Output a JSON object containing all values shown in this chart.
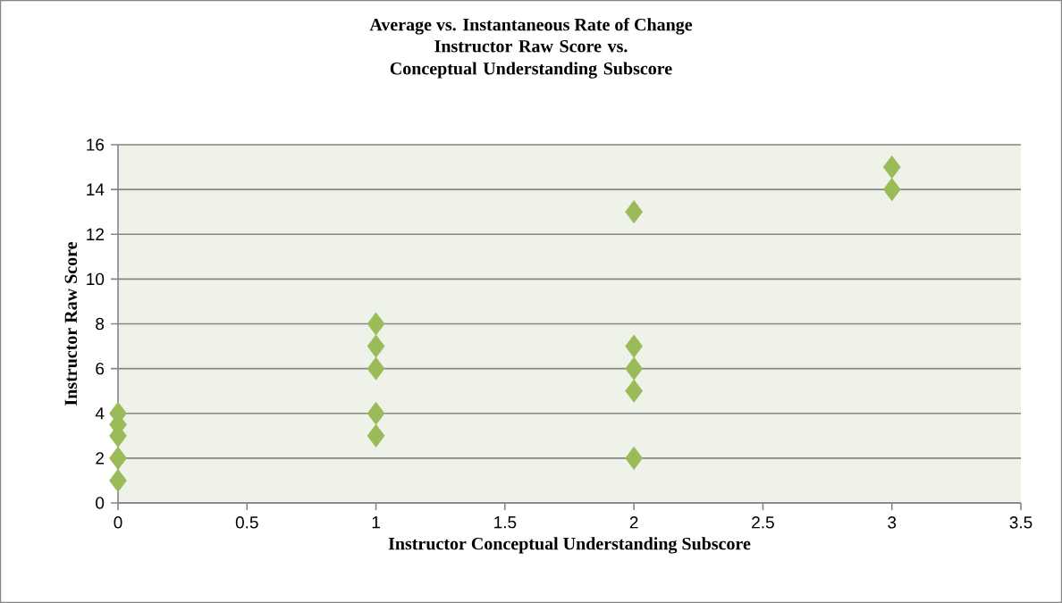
{
  "chart_data": {
    "type": "scatter",
    "title": "Average vs. Instantaneous Rate of Change",
    "subtitle": "Instructor Raw Score vs. Conceptual Understanding Subscore",
    "xlabel": "Instructor Conceptual Understanding Subscore",
    "ylabel": "Instructor Raw Score",
    "x": [
      0,
      0,
      0,
      0,
      0,
      1,
      1,
      1,
      1,
      1,
      2,
      2,
      2,
      2,
      2,
      3,
      3
    ],
    "values": [
      4,
      3.5,
      3,
      2,
      1,
      8,
      7,
      6,
      4,
      3,
      13,
      7,
      6,
      5,
      2,
      15,
      14
    ],
    "color": "#9bbb59",
    "marker": "diamond",
    "grid": "y",
    "xlim": [
      0,
      3.5
    ],
    "xticks": [
      0,
      0.5,
      1,
      1.5,
      2,
      2.5,
      3,
      3.5
    ],
    "ylim": [
      0,
      16
    ],
    "yticks": [
      0,
      2,
      4,
      6,
      8,
      10,
      12,
      14,
      16
    ]
  }
}
